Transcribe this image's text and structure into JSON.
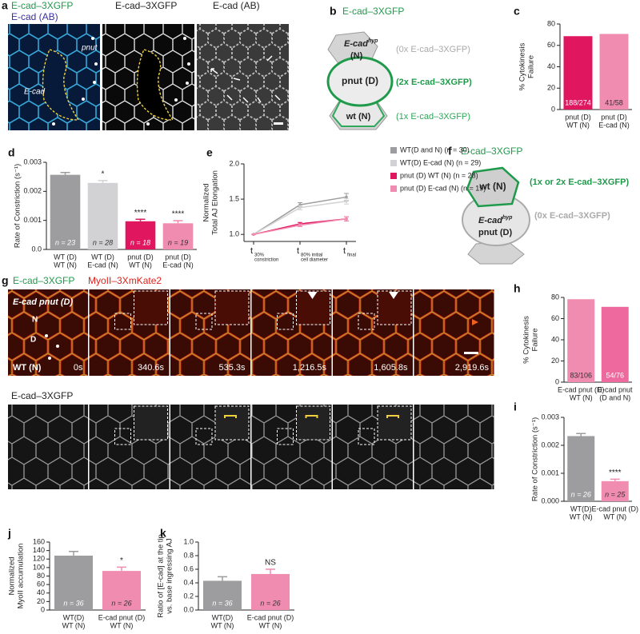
{
  "figure": {
    "a": {
      "letter": "a",
      "label_green": "E-cad–3XGFP",
      "label_blue": "E-cad (AB)",
      "label_pnut": "pnut",
      "label_ecad": "E-cad",
      "label_mid": "E-cad–3XGFP",
      "label_right": "E-cad (AB)"
    },
    "b": {
      "letter": "b",
      "title": "E-cad–3XGFP",
      "top_cell": {
        "main": "E-cad",
        "sup": "hyp",
        "tail": "(N)"
      },
      "mid_cell": "pnut (D)",
      "bottom_cell": "wt (N)",
      "top_note": "(0x E-cad–3XGFP)",
      "mid_note": "(2x E-cad–3XGFP)",
      "bottom_note": "(1x E-cad–3XGFP)"
    },
    "f": {
      "letter": "f",
      "title": "E-cad–3XGFP",
      "top_cell": "wt (N)",
      "bottom_cell": {
        "main": "E-cad",
        "sup": "hyp",
        "line2": "pnut (D)"
      },
      "top_note": "(1x or 2x E-cad–3XGFP)",
      "bottom_note": "(0x E-cad–3XGFP)"
    },
    "g": {
      "letter": "g",
      "label_green": "E-cad–3XGFP",
      "label_red": "MyoII–3XmKate2",
      "cell_top": "E-cad pnut (D)",
      "n_label": "N",
      "d_label": "D",
      "wt_label": "WT (N)",
      "times": [
        "0s",
        "340.6s",
        "535.3s",
        "1,216.5s",
        "1,605.8s",
        "2,919.6s"
      ],
      "row2_label": "E-cad–3XGFP"
    }
  },
  "chart_data": [
    {
      "letter": "c",
      "type": "bar",
      "categories": [
        [
          "pnut (D)",
          "WT (N)"
        ],
        [
          "pnut (D)",
          "E-cad (N)"
        ]
      ],
      "values": [
        68.6,
        70.7
      ],
      "value_labels": [
        "188/274",
        "41/58"
      ],
      "colors": [
        "#e0175f",
        "#f08cb0"
      ],
      "ylabel": [
        "% Cytokinesis",
        "Failure"
      ],
      "ylim": [
        0,
        80
      ],
      "yticks": [
        0,
        20,
        40,
        60,
        80
      ]
    },
    {
      "letter": "d",
      "type": "bar",
      "categories": [
        [
          "WT (D)",
          "WT (N)"
        ],
        [
          "WT (D)",
          "E-cad (N)"
        ],
        [
          "pnut (D)",
          "WT (N)"
        ],
        [
          "pnut (D)",
          "E-cad (N)"
        ]
      ],
      "values": [
        0.00257,
        0.00229,
        0.00097,
        0.0009
      ],
      "errors": [
        8e-05,
        8e-05,
        7e-05,
        9e-05
      ],
      "n_labels": [
        "n = 23",
        "n = 28",
        "n = 18",
        "n = 19"
      ],
      "significance": [
        null,
        "*",
        "****",
        "****"
      ],
      "colors": [
        "#9d9d9f",
        "#d2d2d4",
        "#e0175f",
        "#f08cb0"
      ],
      "ylabel": [
        "Rate of Constriction (s⁻¹)"
      ],
      "ylim": [
        0,
        0.003
      ],
      "yticks": [
        {
          "value": 0,
          "label": "0.0"
        },
        0.001,
        0.002,
        0.003
      ]
    },
    {
      "letter": "e",
      "type": "line",
      "categories": [
        "t",
        "t",
        "t"
      ],
      "category_subscripts": [
        [
          "30%",
          "constriction"
        ],
        [
          "80% initial",
          "cell diameter"
        ],
        [
          "final"
        ]
      ],
      "series": [
        {
          "name": "WT(D and N) (n = 30)",
          "color": "#9d9d9f",
          "values": [
            1,
            1.42,
            1.53
          ],
          "errors": [
            0,
            0.03,
            0.05
          ]
        },
        {
          "name": "WT(D) E-cad (N) (n = 29)",
          "color": "#d2d2d4",
          "values": [
            1,
            1.38,
            1.47
          ],
          "errors": [
            0,
            0.03,
            0.04
          ]
        },
        {
          "name": "pnut (D) WT (N) (n = 28)",
          "color": "#e0175f",
          "values": [
            1,
            1.15,
            1.22
          ],
          "errors": [
            0,
            0.02,
            0.03
          ]
        },
        {
          "name": "pnut (D) E-cad (N) (n = 19)",
          "color": "#f08cb0",
          "values": [
            1,
            1.13,
            1.22
          ],
          "errors": [
            0,
            0.02,
            0.03
          ]
        }
      ],
      "ylabel": [
        "Normalized",
        "Total AJ Elongation"
      ],
      "ylim": [
        0.9,
        2.0
      ],
      "yticks": [
        {
          "value": 1,
          "label": "1.0"
        },
        1.5,
        {
          "value": 2,
          "label": "2.0"
        }
      ]
    },
    {
      "letter": "h",
      "type": "bar",
      "categories": [
        [
          "E-cad pnut (D)",
          "WT (N)"
        ],
        [
          "E-cad pnut",
          "(D and N)"
        ]
      ],
      "values": [
        78.3,
        71.1
      ],
      "value_labels": [
        "83/106",
        "54/76"
      ],
      "colors": [
        "#f08cb0",
        "#ee6a9e"
      ],
      "ylabel": [
        "% Cytokinesis",
        "Failure"
      ],
      "ylim": [
        0,
        80
      ],
      "yticks": [
        0,
        20,
        40,
        60,
        80
      ]
    },
    {
      "letter": "i",
      "type": "bar",
      "categories": [
        [
          "WT(D)",
          "WT (N)"
        ],
        [
          "E-cad pnut (D)",
          "WT (N)"
        ]
      ],
      "values": [
        0.00233,
        0.00072
      ],
      "errors": [
        9e-05,
        7e-05
      ],
      "n_labels": [
        "n = 26",
        "n = 25"
      ],
      "significance": [
        null,
        "****"
      ],
      "colors": [
        "#9d9d9f",
        "#f08cb0"
      ],
      "ylabel": [
        "Rate of Constriction (s⁻¹)"
      ],
      "ylim": [
        0,
        0.003
      ],
      "yticks": [
        {
          "value": 0,
          "label": "0.000"
        },
        0.001,
        0.002,
        0.003
      ]
    },
    {
      "letter": "j",
      "type": "bar",
      "categories": [
        [
          "WT(D)",
          "WT (N)"
        ],
        [
          "E-cad pnut (D)",
          "WT (N)"
        ]
      ],
      "values": [
        128,
        92
      ],
      "errors": [
        10,
        9
      ],
      "n_labels": [
        "n = 36",
        "n = 26"
      ],
      "significance": [
        null,
        "*"
      ],
      "colors": [
        "#9d9d9f",
        "#f08cb0"
      ],
      "ylabel": [
        "Normalized",
        "MyoII accumulation"
      ],
      "ylim": [
        0,
        160
      ],
      "yticks": [
        0,
        20,
        40,
        60,
        80,
        100,
        120,
        140,
        160
      ]
    },
    {
      "letter": "k",
      "type": "bar",
      "categories": [
        [
          "WT(D)",
          "WT (N)"
        ],
        [
          "E-cad pnut (D)",
          "WT (N)"
        ]
      ],
      "values": [
        0.43,
        0.53
      ],
      "errors": [
        0.06,
        0.07
      ],
      "n_labels": [
        "n = 36",
        "n = 26"
      ],
      "significance": [
        null,
        "NS"
      ],
      "colors": [
        "#9d9d9f",
        "#f08cb0"
      ],
      "ylabel": [
        "Ratio of [E-cad] at the tip",
        "vs. base ingressing AJ"
      ],
      "ylim": [
        0,
        1
      ],
      "yticks": [
        {
          "value": 0,
          "label": "0.0"
        },
        0.2,
        0.4,
        0.6,
        0.8,
        {
          "value": 1,
          "label": "1.0"
        }
      ]
    }
  ]
}
